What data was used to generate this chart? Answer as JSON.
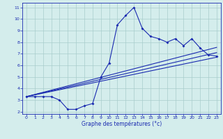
{
  "xlabel": "Graphe des températures (°c)",
  "bg_color": "#d4edec",
  "line_color": "#1a2ab0",
  "grid_color": "#a8cccc",
  "x_data": [
    0,
    1,
    2,
    3,
    4,
    5,
    6,
    7,
    8,
    9,
    10,
    11,
    12,
    13,
    14,
    15,
    16,
    17,
    18,
    19,
    20,
    21,
    22,
    23
  ],
  "y_temp": [
    3.3,
    3.3,
    3.3,
    3.3,
    3.0,
    2.2,
    2.2,
    2.5,
    2.7,
    5.0,
    6.2,
    9.5,
    10.3,
    11.0,
    9.2,
    8.5,
    8.3,
    8.0,
    8.3,
    7.7,
    8.3,
    7.5,
    6.9,
    6.8
  ],
  "ylim": [
    1.8,
    11.4
  ],
  "yticks": [
    2,
    3,
    4,
    5,
    6,
    7,
    8,
    9,
    10,
    11
  ],
  "xlim": [
    -0.5,
    23.5
  ],
  "xticks": [
    0,
    1,
    2,
    3,
    4,
    5,
    6,
    7,
    8,
    9,
    10,
    11,
    12,
    13,
    14,
    15,
    16,
    17,
    18,
    19,
    20,
    21,
    22,
    23
  ],
  "reg_lines": [
    {
      "x0": 0,
      "y0": 3.3,
      "x1": 23,
      "y1": 6.7
    },
    {
      "x0": 0,
      "y0": 3.3,
      "x1": 23,
      "y1": 7.1
    },
    {
      "x0": 0,
      "y0": 3.3,
      "x1": 23,
      "y1": 7.55
    }
  ]
}
